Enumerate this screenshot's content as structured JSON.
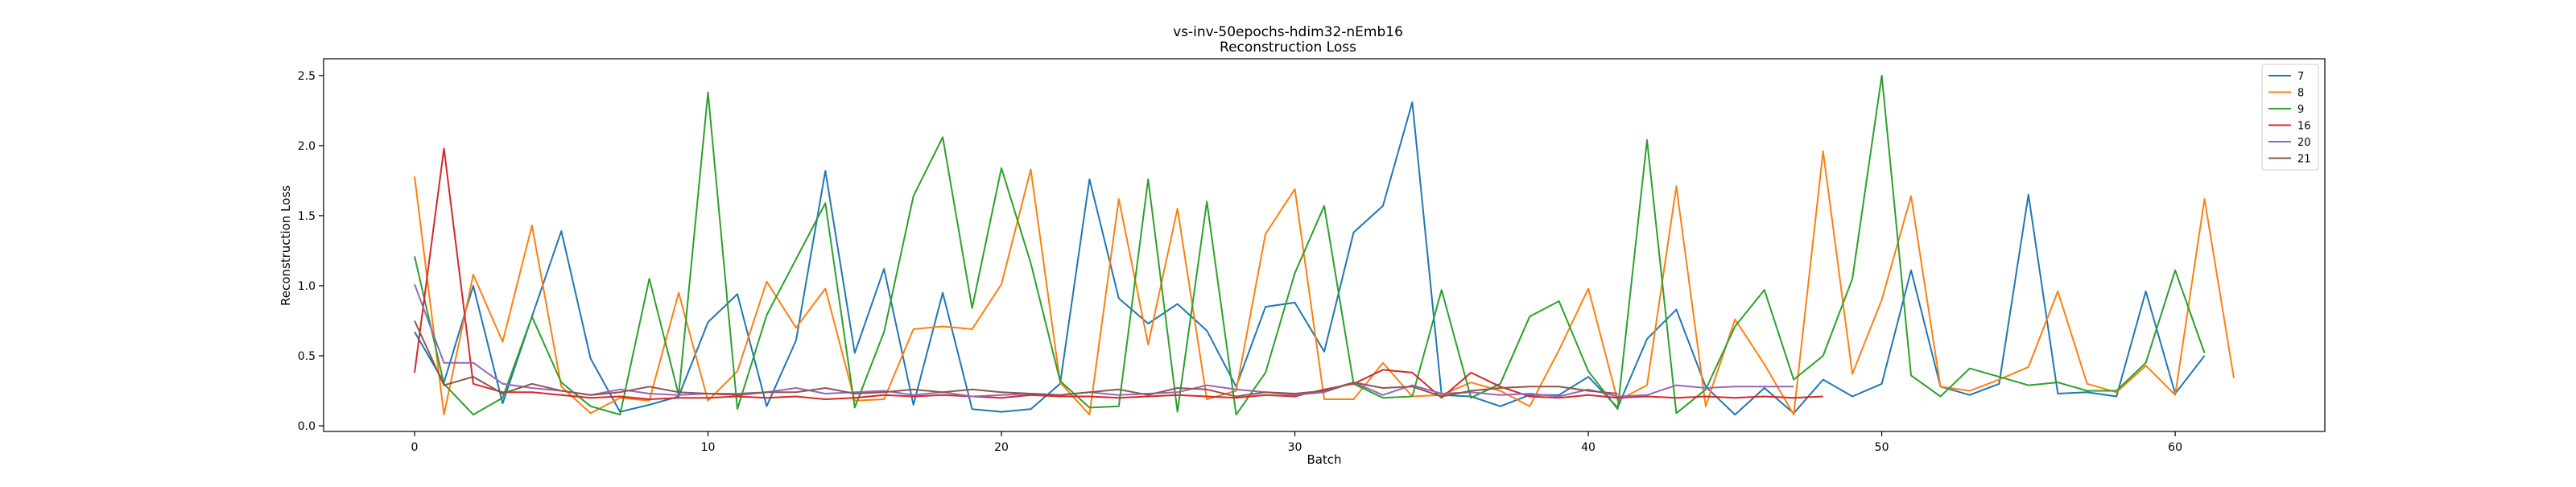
{
  "chart_data": {
    "type": "line",
    "title": "vs-inv-50epochs-hdim32-nEmb16",
    "subtitle": "Reconstruction Loss",
    "xlabel": "Batch",
    "ylabel": "Reconstruction Loss",
    "xlim": [
      -3.1,
      65.1
    ],
    "ylim": [
      -0.04,
      2.62
    ],
    "xticks": [
      0,
      10,
      20,
      30,
      40,
      50,
      60
    ],
    "yticks": [
      0.0,
      0.5,
      1.0,
      1.5,
      2.0,
      2.5
    ],
    "xtick_labels": [
      "0",
      "10",
      "20",
      "30",
      "40",
      "50",
      "60"
    ],
    "ytick_labels": [
      "0.0",
      "0.5",
      "1.0",
      "1.5",
      "2.0",
      "2.5"
    ],
    "legend_position": "top-right",
    "series": [
      {
        "name": "7",
        "color": "#1f77b4",
        "values": [
          0.67,
          0.31,
          1.0,
          0.16,
          0.78,
          1.39,
          0.48,
          0.1,
          0.15,
          0.21,
          0.74,
          0.94,
          0.14,
          0.61,
          1.82,
          0.52,
          1.12,
          0.15,
          0.95,
          0.12,
          0.1,
          0.12,
          0.3,
          1.76,
          0.91,
          0.73,
          0.87,
          0.68,
          0.28,
          0.85,
          0.88,
          0.53,
          1.38,
          1.57,
          2.31,
          0.22,
          0.21,
          0.14,
          0.22,
          0.22,
          0.35,
          0.13,
          0.62,
          0.83,
          0.28,
          0.08,
          0.27,
          0.09,
          0.33,
          0.21,
          0.3,
          1.11,
          0.28,
          0.22,
          0.3,
          1.65,
          0.23,
          0.24,
          0.21,
          0.96,
          0.23,
          0.5
        ]
      },
      {
        "name": "8",
        "color": "#ff7f0e",
        "values": [
          1.78,
          0.08,
          1.08,
          0.6,
          1.43,
          0.28,
          0.09,
          0.2,
          0.18,
          0.95,
          0.18,
          0.39,
          1.03,
          0.7,
          0.98,
          0.18,
          0.19,
          0.69,
          0.71,
          0.69,
          1.01,
          1.83,
          0.31,
          0.08,
          1.62,
          0.58,
          1.55,
          0.19,
          0.25,
          1.37,
          1.69,
          0.19,
          0.19,
          0.45,
          0.21,
          0.22,
          0.31,
          0.25,
          0.14,
          0.54,
          0.98,
          0.18,
          0.29,
          1.71,
          0.14,
          0.76,
          0.44,
          0.08,
          1.96,
          0.37,
          0.9,
          1.64,
          0.28,
          0.25,
          0.33,
          0.42,
          0.96,
          0.3,
          0.24,
          0.43,
          0.22,
          1.62,
          0.34
        ]
      },
      {
        "name": "9",
        "color": "#2ca02c",
        "values": [
          1.21,
          0.3,
          0.08,
          0.2,
          0.78,
          0.31,
          0.14,
          0.08,
          1.05,
          0.22,
          2.38,
          0.12,
          0.79,
          1.19,
          1.59,
          0.13,
          0.67,
          1.64,
          2.06,
          0.84,
          1.84,
          1.16,
          0.32,
          0.13,
          0.14,
          1.76,
          0.1,
          1.6,
          0.08,
          0.38,
          1.09,
          1.57,
          0.3,
          0.2,
          0.21,
          0.97,
          0.2,
          0.3,
          0.78,
          0.89,
          0.39,
          0.12,
          2.04,
          0.09,
          0.26,
          0.71,
          0.97,
          0.33,
          0.5,
          1.05,
          2.5,
          0.36,
          0.21,
          0.41,
          0.35,
          0.29,
          0.31,
          0.25,
          0.25,
          0.45,
          1.11,
          0.52
        ]
      },
      {
        "name": "16",
        "color": "#d62728",
        "values": [
          0.38,
          1.98,
          0.3,
          0.24,
          0.24,
          0.22,
          0.2,
          0.21,
          0.19,
          0.2,
          0.2,
          0.21,
          0.2,
          0.21,
          0.19,
          0.2,
          0.22,
          0.21,
          0.22,
          0.21,
          0.2,
          0.22,
          0.21,
          0.21,
          0.2,
          0.21,
          0.22,
          0.21,
          0.2,
          0.22,
          0.21,
          0.26,
          0.3,
          0.4,
          0.38,
          0.2,
          0.38,
          0.28,
          0.21,
          0.2,
          0.22,
          0.2,
          0.21,
          0.2,
          0.21,
          0.2,
          0.21,
          0.2,
          0.21
        ]
      },
      {
        "name": "20",
        "color": "#9467bd",
        "values": [
          1.01,
          0.45,
          0.45,
          0.3,
          0.27,
          0.25,
          0.22,
          0.26,
          0.23,
          0.22,
          0.23,
          0.23,
          0.24,
          0.27,
          0.23,
          0.24,
          0.25,
          0.22,
          0.24,
          0.21,
          0.22,
          0.23,
          0.22,
          0.24,
          0.22,
          0.23,
          0.24,
          0.29,
          0.26,
          0.24,
          0.22,
          0.24,
          0.31,
          0.22,
          0.29,
          0.23,
          0.24,
          0.22,
          0.23,
          0.21,
          0.26,
          0.21,
          0.22,
          0.29,
          0.27,
          0.28,
          0.28,
          0.28
        ]
      },
      {
        "name": "21",
        "color": "#8c564b",
        "values": [
          0.75,
          0.29,
          0.35,
          0.23,
          0.3,
          0.25,
          0.22,
          0.24,
          0.28,
          0.24,
          0.23,
          0.22,
          0.24,
          0.24,
          0.27,
          0.23,
          0.24,
          0.26,
          0.24,
          0.26,
          0.24,
          0.23,
          0.22,
          0.24,
          0.26,
          0.22,
          0.27,
          0.26,
          0.21,
          0.24,
          0.23,
          0.25,
          0.31,
          0.27,
          0.28,
          0.21,
          0.25,
          0.27,
          0.28,
          0.28,
          0.25,
          0.23
        ]
      }
    ]
  }
}
